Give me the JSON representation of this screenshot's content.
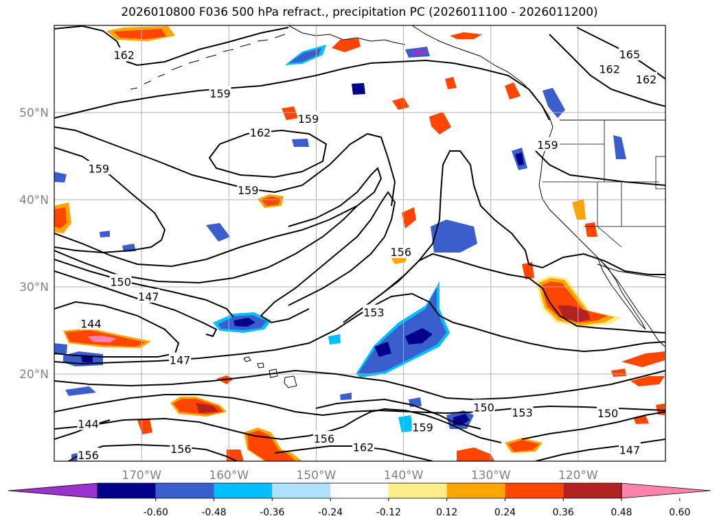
{
  "title": "2026010800 F036 500 hPa refract., precipitation PC (2026011100 - 2026011200)",
  "map": {
    "lon_range": [
      -180,
      -110
    ],
    "lat_range": [
      10,
      60
    ],
    "lat_ticks": [
      "20°N",
      "30°N",
      "40°N",
      "50°N"
    ],
    "lon_ticks": [
      "170°W",
      "160°W",
      "150°W",
      "140°W",
      "130°W",
      "120°W"
    ],
    "contour_labels": [
      {
        "text": "162",
        "lon": -172.0,
        "lat": 56.6
      },
      {
        "text": "159",
        "lon": -161.0,
        "lat": 52.2
      },
      {
        "text": "159",
        "lon": -150.9,
        "lat": 49.3
      },
      {
        "text": "162",
        "lon": -156.4,
        "lat": 47.7
      },
      {
        "text": "159",
        "lon": -174.9,
        "lat": 43.6
      },
      {
        "text": "159",
        "lon": -157.8,
        "lat": 41.1
      },
      {
        "text": "165",
        "lon": -114.1,
        "lat": 56.7
      },
      {
        "text": "162",
        "lon": -116.4,
        "lat": 55.0
      },
      {
        "text": "162",
        "lon": -112.2,
        "lat": 53.8
      },
      {
        "text": "159",
        "lon": -123.5,
        "lat": 46.3
      },
      {
        "text": "156",
        "lon": -140.3,
        "lat": 34.0
      },
      {
        "text": "150",
        "lon": -172.4,
        "lat": 30.6
      },
      {
        "text": "147",
        "lon": -169.2,
        "lat": 28.9
      },
      {
        "text": "153",
        "lon": -143.4,
        "lat": 27.1
      },
      {
        "text": "144",
        "lon": -175.8,
        "lat": 25.8
      },
      {
        "text": "147",
        "lon": -165.6,
        "lat": 21.6
      },
      {
        "text": "150",
        "lon": -130.8,
        "lat": 16.2
      },
      {
        "text": "153",
        "lon": -126.4,
        "lat": 15.6
      },
      {
        "text": "150",
        "lon": -116.6,
        "lat": 15.5
      },
      {
        "text": "159",
        "lon": -137.8,
        "lat": 13.9
      },
      {
        "text": "156",
        "lon": -149.1,
        "lat": 12.6
      },
      {
        "text": "162",
        "lon": -144.6,
        "lat": 11.6
      },
      {
        "text": "156",
        "lon": -165.5,
        "lat": 11.4
      },
      {
        "text": "156",
        "lon": -176.1,
        "lat": 10.7
      },
      {
        "text": "144",
        "lon": -176.1,
        "lat": 14.3
      },
      {
        "text": "147",
        "lon": -114.1,
        "lat": 11.3
      }
    ]
  },
  "colorbar": {
    "tick_labels": [
      "-0.60",
      "-0.48",
      "-0.36",
      "-0.24",
      "-0.12",
      "0.12",
      "0.24",
      "0.36",
      "0.48",
      "0.60"
    ],
    "colors": [
      "#9a32cd",
      "#00008b",
      "#3a5fcd",
      "#00bfff",
      "#b0e2ff",
      "#ffffff",
      "#ffec8b",
      "#ffa500",
      "#ff4500",
      "#b22222",
      "#ff82ab"
    ]
  },
  "colors": {
    "pos1": "#ffec8b",
    "pos2": "#ffa500",
    "pos3": "#ff4500",
    "pos4": "#b22222",
    "pos5": "#ff82ab",
    "neg1": "#b0e2ff",
    "neg2": "#00bfff",
    "neg3": "#3a5fcd",
    "neg4": "#00008b",
    "neg5": "#9a32cd"
  }
}
